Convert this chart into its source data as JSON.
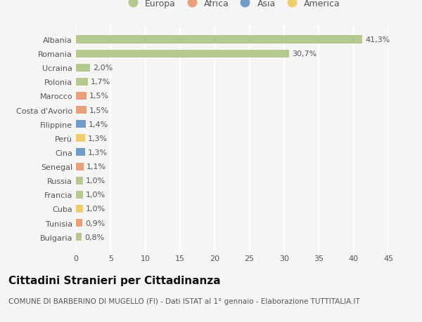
{
  "categories": [
    "Albania",
    "Romania",
    "Ucraina",
    "Polonia",
    "Marocco",
    "Costa d'Avorio",
    "Filippine",
    "Perù",
    "Cina",
    "Senegal",
    "Russia",
    "Francia",
    "Cuba",
    "Tunisia",
    "Bulgaria"
  ],
  "values": [
    41.3,
    30.7,
    2.0,
    1.7,
    1.5,
    1.5,
    1.4,
    1.3,
    1.3,
    1.1,
    1.0,
    1.0,
    1.0,
    0.9,
    0.8
  ],
  "labels": [
    "41,3%",
    "30,7%",
    "2,0%",
    "1,7%",
    "1,5%",
    "1,5%",
    "1,4%",
    "1,3%",
    "1,3%",
    "1,1%",
    "1,0%",
    "1,0%",
    "1,0%",
    "0,9%",
    "0,8%"
  ],
  "continents": [
    "Europa",
    "Europa",
    "Europa",
    "Europa",
    "Africa",
    "Africa",
    "Asia",
    "America",
    "Asia",
    "Africa",
    "Europa",
    "Europa",
    "America",
    "Africa",
    "Europa"
  ],
  "continent_colors": {
    "Europa": "#b5c98e",
    "Africa": "#e8a07a",
    "Asia": "#6e9ec5",
    "America": "#f0cc6a"
  },
  "legend_order": [
    "Europa",
    "Africa",
    "Asia",
    "America"
  ],
  "bar_height": 0.55,
  "xlim": [
    0,
    45
  ],
  "xticks": [
    0,
    5,
    10,
    15,
    20,
    25,
    30,
    35,
    40,
    45
  ],
  "title": "Cittadini Stranieri per Cittadinanza",
  "subtitle": "COMUNE DI BARBERINO DI MUGELLO (FI) - Dati ISTAT al 1° gennaio - Elaborazione TUTTITALIA.IT",
  "bg_color": "#f5f5f5",
  "grid_color": "#ffffff",
  "label_fontsize": 8,
  "tick_fontsize": 8,
  "title_fontsize": 11,
  "subtitle_fontsize": 7.5
}
